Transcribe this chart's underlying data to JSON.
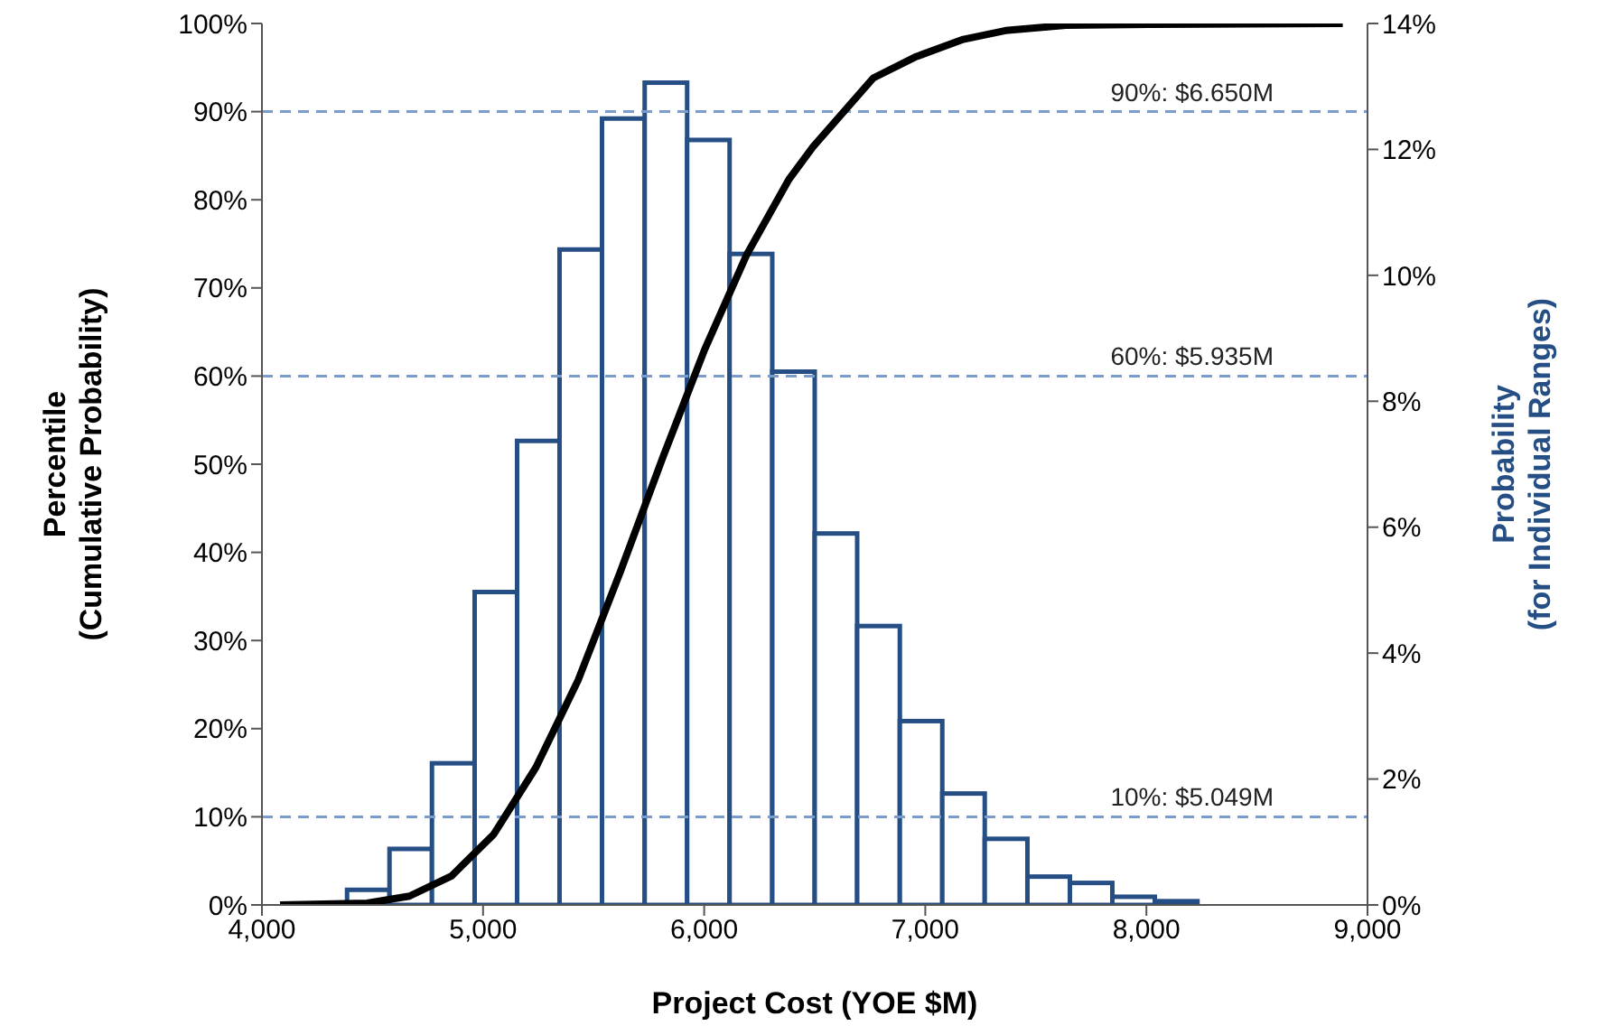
{
  "chart_data": {
    "type": "histogram",
    "xlabel": "Project Cost (YOE $M)",
    "ylabel": "Percentile\n(Cumulative Probability)",
    "y2label": "Probability\n(for Individual Ranges)",
    "bins": [
      4000,
      4192,
      4385,
      4577,
      4769,
      4962,
      5154,
      5346,
      5538,
      5731,
      5923,
      6115,
      6308,
      6500,
      6692,
      6885,
      7077,
      7269,
      7462,
      7654,
      7846,
      8038,
      8231,
      8423,
      8615,
      8808,
      9000
    ],
    "series": [
      {
        "axis": "y2",
        "color": "#254e85",
        "values": [
          0,
          0,
          0.24,
          0.89,
          2.25,
          4.97,
          7.37,
          10.41,
          12.49,
          13.06,
          12.15,
          10.34,
          8.47,
          5.9,
          4.43,
          2.92,
          1.77,
          1.05,
          0.45,
          0.35,
          0.13,
          0.06,
          0,
          0,
          0,
          0
        ]
      },
      {
        "type": "line",
        "color": "#000000",
        "x": [
          4082,
          4476,
          4667,
          4858,
          5048,
          5239,
          5430,
          5621,
          5812,
          6002,
          6193,
          6383,
          6492,
          6764,
          6955,
          7172,
          7363,
          7636,
          8044,
          8888
        ],
        "values": [
          0,
          0.2,
          1.0,
          3.3,
          8,
          15.6,
          25.5,
          37.8,
          50.7,
          63,
          73.8,
          82.3,
          86,
          93.8,
          96.2,
          98.2,
          99.2,
          99.8,
          99.9,
          100
        ]
      }
    ],
    "xlim": [
      4000,
      9000
    ],
    "xticks": [
      {
        "value": 4000,
        "label": "4,000"
      },
      {
        "value": 5000,
        "label": "5,000"
      },
      {
        "value": 6000,
        "label": "6,000"
      },
      {
        "value": 7000,
        "label": "7,000"
      },
      {
        "value": 8000,
        "label": "8,000"
      },
      {
        "value": 9000,
        "label": "9,000"
      }
    ],
    "ylim": [
      0,
      100
    ],
    "yticks": [
      {
        "value": 0,
        "label": "0%"
      },
      {
        "value": 10,
        "label": "10%"
      },
      {
        "value": 20,
        "label": "20%"
      },
      {
        "value": 30,
        "label": "30%"
      },
      {
        "value": 40,
        "label": "40%"
      },
      {
        "value": 50,
        "label": "50%"
      },
      {
        "value": 60,
        "label": "60%"
      },
      {
        "value": 70,
        "label": "70%"
      },
      {
        "value": 80,
        "label": "80%"
      },
      {
        "value": 90,
        "label": "90%"
      },
      {
        "value": 100,
        "label": "100%"
      }
    ],
    "y2lim": [
      0,
      14
    ],
    "y2ticks": [
      {
        "value": 0,
        "label": "0%"
      },
      {
        "value": 2,
        "label": "2%"
      },
      {
        "value": 4,
        "label": "4%"
      },
      {
        "value": 6,
        "label": "6%"
      },
      {
        "value": 8,
        "label": "8%"
      },
      {
        "value": 10,
        "label": "10%"
      },
      {
        "value": 12,
        "label": "12%"
      },
      {
        "value": 14,
        "label": "14%"
      }
    ],
    "ref_lines": [
      {
        "axis": "y",
        "value": 90,
        "label": "90%: $6.650M",
        "color": "#7b9ccb",
        "line_style": "dashed"
      },
      {
        "axis": "y",
        "value": 60,
        "label": "60%: $5.935M",
        "color": "#7b9ccb",
        "line_style": "dashed"
      },
      {
        "axis": "y",
        "value": 10,
        "label": "10%: $5.049M",
        "color": "#7b9ccb",
        "line_style": "dashed"
      }
    ],
    "grid": false
  }
}
